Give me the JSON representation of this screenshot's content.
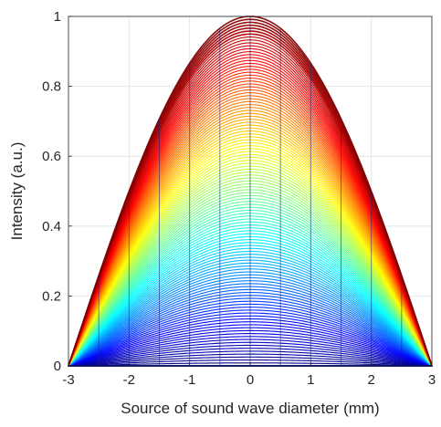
{
  "chart_data": {
    "type": "line",
    "title": "",
    "xlabel": "Source of sound wave diameter (mm)",
    "ylabel": "Intensity (a.u.)",
    "xlim": [
      -3,
      3
    ],
    "ylim": [
      0,
      1
    ],
    "xticks": [
      "-3",
      "-2",
      "-1",
      "0",
      "1",
      "2",
      "3"
    ],
    "yticks": [
      "0",
      "0.2",
      "0.4",
      "0.6",
      "0.8",
      "1"
    ],
    "grid": true,
    "colormap": "jet",
    "description_of_series": "",
    "series": [
      {
        "kind": "family-of-cosine-profiles",
        "x": [
          -3,
          -2.5,
          -2,
          -1.5,
          -1,
          -0.5,
          0,
          0.5,
          1,
          1.5,
          2,
          2.5,
          3
        ],
        "envelope_y": [
          0,
          0.26,
          0.5,
          0.71,
          0.87,
          0.97,
          1,
          0.97,
          0.87,
          0.71,
          0.5,
          0.26,
          0
        ],
        "scale_min": 0.0,
        "scale_max": 1.0,
        "count": 120
      }
    ],
    "colors": {
      "axis": "#262626",
      "grid": "#e6e6e6",
      "vertical_guides": "#1a237e"
    }
  }
}
